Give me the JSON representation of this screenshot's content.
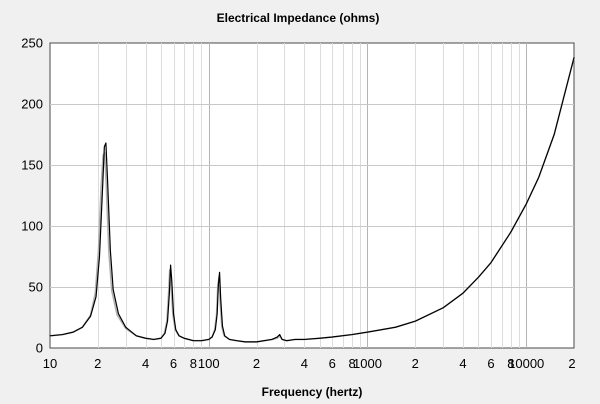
{
  "chart_data": {
    "type": "line",
    "title": "Electrical Impedance (ohms)",
    "xlabel": "Frequency (hertz)",
    "ylabel": "",
    "x_scale": "log",
    "xlim": [
      10,
      20000
    ],
    "ylim": [
      0,
      250
    ],
    "grid": true,
    "legend": "none",
    "yticks": [
      0,
      50,
      100,
      150,
      200,
      250
    ],
    "ytick_labels": [
      "0",
      "50",
      "100",
      "150",
      "200",
      "250"
    ],
    "xticks": [
      10,
      20,
      40,
      60,
      80,
      100,
      200,
      400,
      600,
      800,
      1000,
      2000,
      4000,
      6000,
      8000,
      10000,
      20000
    ],
    "xtick_labels": [
      "10",
      "2",
      "4",
      "6",
      "8",
      "100",
      "2",
      "4",
      "6",
      "8",
      "1000",
      "2",
      "4",
      "6",
      "8",
      "10000",
      "2"
    ],
    "series": [
      {
        "color": "#000000",
        "x": [
          10,
          12,
          14,
          16,
          18,
          19.5,
          20.5,
          21.5,
          22,
          22.5,
          23,
          24,
          25,
          27,
          30,
          35,
          40,
          45,
          50,
          53,
          55,
          56.5,
          57.5,
          58.5,
          60,
          62,
          65,
          70,
          80,
          90,
          100,
          105,
          110,
          113,
          115,
          117,
          119,
          122,
          126,
          135,
          150,
          170,
          200,
          250,
          270,
          280,
          290,
          310,
          350,
          400,
          500,
          600,
          800,
          1000,
          1500,
          2000,
          3000,
          4000,
          5000,
          6000,
          8000,
          10000,
          12000,
          15000,
          20000
        ],
        "y": [
          10,
          11,
          13,
          17,
          26,
          42,
          75,
          135,
          165,
          168,
          140,
          80,
          48,
          28,
          17,
          10,
          8,
          7,
          8,
          12,
          22,
          45,
          68,
          55,
          28,
          15,
          10,
          8,
          6,
          6,
          7,
          9,
          15,
          28,
          52,
          62,
          40,
          18,
          10,
          7,
          6,
          5,
          5,
          7,
          9,
          11,
          7,
          6,
          7,
          7,
          8,
          9,
          11,
          13,
          17,
          22,
          33,
          45,
          58,
          70,
          95,
          118,
          140,
          175,
          238
        ]
      },
      {
        "color": "#b0b0b0",
        "x": [
          10,
          12,
          14,
          16,
          18,
          19.3,
          20.2,
          21,
          21.6,
          22.1,
          22.6,
          23.5,
          24.5,
          26.5,
          30,
          35,
          40,
          45,
          50,
          52.5,
          54.5,
          55.8,
          56.8,
          57.8,
          59.5,
          61.5,
          65,
          70,
          80,
          90,
          100,
          105,
          109,
          112,
          114,
          116,
          118,
          121,
          125,
          135,
          150,
          170,
          200,
          250,
          270,
          280,
          290,
          310,
          350,
          400,
          500,
          600,
          800,
          1000,
          1500,
          2000,
          3000,
          4000,
          5000,
          6000,
          8000,
          10000,
          12000,
          15000,
          20000
        ],
        "y": [
          10,
          11,
          13,
          17,
          27,
          45,
          80,
          132,
          158,
          160,
          135,
          78,
          47,
          27,
          16,
          10,
          8,
          7,
          8,
          12,
          22,
          44,
          64,
          52,
          27,
          15,
          10,
          8,
          6,
          6,
          7,
          9,
          15,
          27,
          50,
          58,
          38,
          17,
          10,
          7,
          6,
          5,
          5,
          7,
          8,
          10,
          7,
          6,
          7,
          7,
          8,
          9,
          11,
          13,
          17,
          22,
          33,
          45,
          58,
          70,
          95,
          118,
          140,
          175,
          238
        ]
      }
    ]
  }
}
